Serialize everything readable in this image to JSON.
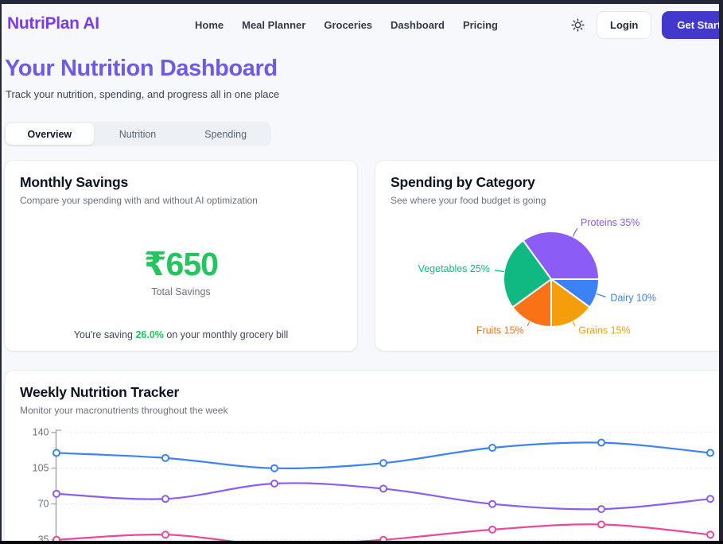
{
  "nav": {
    "logo": "NutriPlan AI",
    "links": [
      "Home",
      "Meal Planner",
      "Groceries",
      "Dashboard",
      "Pricing"
    ],
    "theme_icon": "sun-icon",
    "login_label": "Login",
    "get_started_label": "Get Started"
  },
  "header": {
    "title": "Your Nutrition Dashboard",
    "subtitle": "Track your nutrition, spending, and progress all in one place"
  },
  "tabs": [
    {
      "label": "Overview",
      "active": true
    },
    {
      "label": "Nutrition",
      "active": false
    },
    {
      "label": "Spending",
      "active": false
    }
  ],
  "savings_card": {
    "title": "Monthly Savings",
    "subtitle": "Compare your spending with and without AI optimization",
    "amount": "₹650",
    "amount_label": "Total Savings",
    "note_prefix": "You're saving ",
    "note_highlight": "26.0%",
    "note_suffix": " on your monthly grocery bill"
  },
  "spending_card": {
    "title": "Spending by Category",
    "subtitle": "See where your food budget is going"
  },
  "nutrition_card": {
    "title": "Weekly Nutrition Tracker",
    "subtitle": "Monitor your macronutrients throughout the week"
  },
  "colors": {
    "brand_purple": "#7c3aed",
    "heading_purple": "#6d5be8",
    "cta_indigo": "#4238cc",
    "savings_green": "#22c55e"
  },
  "chart_data": [
    {
      "id": "spending_pie",
      "type": "pie",
      "title": "Spending by Category",
      "start_angle_deg": -36,
      "clockwise": true,
      "label_format": "{label} {value}%",
      "slices": [
        {
          "label": "Proteins",
          "value": 35,
          "color": "#8b5cf6"
        },
        {
          "label": "Dairy",
          "value": 10,
          "color": "#3b82f6"
        },
        {
          "label": "Grains",
          "value": 15,
          "color": "#f59e0b"
        },
        {
          "label": "Fruits",
          "value": 15,
          "color": "#f97316"
        },
        {
          "label": "Vegetables",
          "value": 25,
          "color": "#10b981"
        }
      ]
    },
    {
      "id": "weekly_lines",
      "type": "line",
      "title": "Weekly Nutrition Tracker",
      "x": [
        1,
        2,
        3,
        4,
        5,
        6,
        7
      ],
      "x_labels_visible": false,
      "legend_visible": false,
      "y_ticks": [
        35,
        70,
        105,
        140
      ],
      "ylim_visible": [
        35,
        145
      ],
      "grid": "dashed-horizontal",
      "series": [
        {
          "name": "blue",
          "color": "#3b82f6",
          "values": [
            120,
            115,
            105,
            110,
            125,
            130,
            120
          ]
        },
        {
          "name": "purple",
          "color": "#8b5cf6",
          "values": [
            80,
            75,
            90,
            85,
            70,
            65,
            75
          ]
        },
        {
          "name": "pink",
          "color": "#ec4899",
          "values": [
            35,
            40,
            30,
            35,
            45,
            50,
            40
          ]
        }
      ]
    }
  ]
}
